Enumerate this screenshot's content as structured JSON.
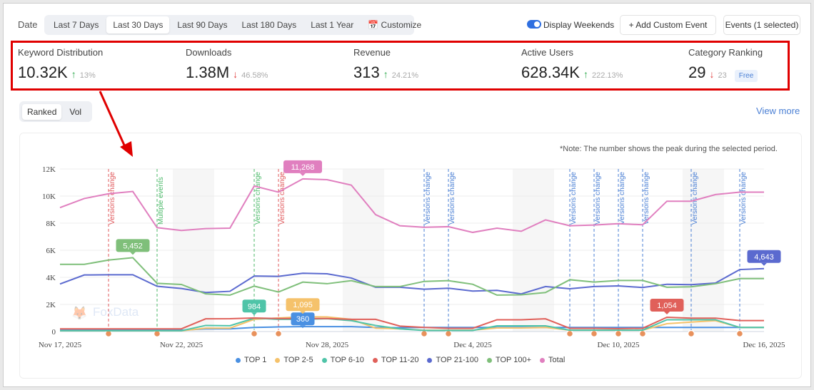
{
  "toolbar": {
    "date_label": "Date",
    "ranges": [
      "Last 7 Days",
      "Last 30 Days",
      "Last 90 Days",
      "Last 180 Days",
      "Last 1 Year",
      "Customize"
    ],
    "active_range": "Last 30 Days",
    "display_weekends": "Display Weekends",
    "display_weekends_on": true,
    "add_event": "+ Add Custom Event",
    "events": "Events (1 selected)"
  },
  "metrics": [
    {
      "label": "Keyword Distribution",
      "value": "10.32K",
      "trend": "up",
      "change": "13%"
    },
    {
      "label": "Downloads",
      "value": "1.38M",
      "trend": "down",
      "change": "46.58%"
    },
    {
      "label": "Revenue",
      "value": "313",
      "trend": "up",
      "change": "24.21%"
    },
    {
      "label": "Active Users",
      "value": "628.34K",
      "trend": "up",
      "change": "222.13%"
    },
    {
      "label": "Category Ranking",
      "value": "29",
      "trend": "down",
      "change": "23",
      "badge": "Free"
    }
  ],
  "tabs": {
    "ranked": "Ranked",
    "vol": "Vol",
    "active": "Ranked",
    "view_more": "View more"
  },
  "note": "*Note: The number shows the peak during the selected period.",
  "watermark": "FoxData",
  "chart_data": {
    "type": "line",
    "ylim": [
      0,
      12000
    ],
    "yticks": [
      "0",
      "2K",
      "4K",
      "6K",
      "8K",
      "10K",
      "12K"
    ],
    "xticks": [
      "Nov 17, 2025",
      "Nov 22, 2025",
      "Nov 28, 2025",
      "Dec 4, 2025",
      "Dec 10, 2025",
      "Dec 16, 2025"
    ],
    "x": [
      "Nov 17",
      "Nov 18",
      "Nov 19",
      "Nov 20",
      "Nov 21",
      "Nov 22",
      "Nov 23",
      "Nov 24",
      "Nov 25",
      "Nov 26",
      "Nov 27",
      "Nov 28",
      "Nov 29",
      "Nov 30",
      "Dec 1",
      "Dec 2",
      "Dec 3",
      "Dec 4",
      "Dec 5",
      "Dec 6",
      "Dec 7",
      "Dec 8",
      "Dec 9",
      "Dec 10",
      "Dec 11",
      "Dec 12",
      "Dec 13",
      "Dec 14",
      "Dec 15",
      "Dec 16"
    ],
    "weekends": [
      [
        "Nov 22",
        "Nov 23"
      ],
      [
        "Nov 29",
        "Nov 30"
      ],
      [
        "Dec 6",
        "Dec 7"
      ],
      [
        "Dec 13",
        "Dec 14"
      ]
    ],
    "series": [
      {
        "name": "TOP 1",
        "color": "#4a90e2",
        "peak": "360",
        "peak_index": 10,
        "values": [
          100,
          100,
          100,
          100,
          100,
          100,
          200,
          200,
          300,
          340,
          360,
          360,
          360,
          300,
          280,
          300,
          300,
          300,
          300,
          300,
          300,
          300,
          300,
          300,
          300,
          300,
          300,
          300,
          300,
          300
        ]
      },
      {
        "name": "TOP 2-5",
        "color": "#f5c26b",
        "peak": "1,095",
        "peak_index": 10,
        "values": [
          50,
          50,
          50,
          50,
          50,
          50,
          250,
          250,
          900,
          1000,
          1095,
          1080,
          900,
          250,
          200,
          100,
          100,
          100,
          260,
          260,
          300,
          100,
          100,
          100,
          100,
          580,
          700,
          800,
          300,
          300
        ]
      },
      {
        "name": "TOP 6-10",
        "color": "#4fc4a8",
        "peak": "984",
        "peak_index": 8,
        "values": [
          60,
          60,
          60,
          60,
          60,
          60,
          450,
          430,
          984,
          900,
          900,
          950,
          800,
          450,
          200,
          80,
          80,
          80,
          420,
          420,
          420,
          100,
          100,
          100,
          100,
          870,
          870,
          870,
          300,
          300
        ]
      },
      {
        "name": "TOP 11-20",
        "color": "#e0605a",
        "peak": "1,054",
        "peak_index": 25,
        "values": [
          200,
          200,
          200,
          200,
          200,
          200,
          940,
          950,
          1000,
          960,
          960,
          960,
          900,
          900,
          400,
          300,
          240,
          240,
          870,
          870,
          940,
          240,
          240,
          220,
          240,
          1054,
          990,
          990,
          810,
          810
        ]
      },
      {
        "name": "TOP 21-100",
        "color": "#5b6acf",
        "peak": "4,643",
        "peak_index": 29,
        "values": [
          3510,
          4175,
          4190,
          4190,
          3340,
          3180,
          2880,
          2970,
          4100,
          4070,
          4300,
          4260,
          3950,
          3270,
          3270,
          3125,
          3200,
          2990,
          3040,
          2780,
          3320,
          3160,
          3320,
          3370,
          3250,
          3490,
          3460,
          3580,
          4576,
          4643
        ]
      },
      {
        "name": "TOP 100+",
        "color": "#7fbf7a",
        "peak": "5,452",
        "peak_index": 3,
        "values": [
          4960,
          4960,
          5275,
          5452,
          3560,
          3475,
          2780,
          2690,
          3350,
          2920,
          3650,
          3530,
          3755,
          3320,
          3320,
          3700,
          3755,
          3490,
          2690,
          2710,
          2880,
          3825,
          3650,
          3770,
          3770,
          3270,
          3300,
          3530,
          3910,
          3910
        ]
      },
      {
        "name": "Total",
        "color": "#e07fbf",
        "peak": "11,268",
        "peak_index": 10,
        "values": [
          9150,
          9820,
          10170,
          10340,
          7670,
          7460,
          7600,
          7630,
          10740,
          10290,
          11268,
          11210,
          10810,
          8630,
          7810,
          7700,
          7740,
          7320,
          7630,
          7400,
          8240,
          7810,
          7860,
          7960,
          7880,
          9620,
          9620,
          10110,
          10290,
          10290
        ]
      }
    ],
    "events": [
      {
        "index": 2,
        "label": "Versions change",
        "color": "#e0585b"
      },
      {
        "index": 4,
        "label": "Multiple events",
        "color": "#4cba6a"
      },
      {
        "index": 8,
        "label": "Versions change",
        "color": "#4cba6a"
      },
      {
        "index": 9,
        "label": "Versions change",
        "color": "#e0585b"
      },
      {
        "index": 15,
        "label": "Versions change",
        "color": "#4a7fd4"
      },
      {
        "index": 16,
        "label": "Versions change",
        "color": "#4a7fd4"
      },
      {
        "index": 21,
        "label": "Versions change",
        "color": "#4a7fd4"
      },
      {
        "index": 22,
        "label": "Versions change",
        "color": "#4a7fd4"
      },
      {
        "index": 23,
        "label": "Versions change",
        "color": "#4a7fd4"
      },
      {
        "index": 24,
        "label": "Versions change",
        "color": "#4a7fd4"
      },
      {
        "index": 26,
        "label": "Versions change",
        "color": "#4a7fd4"
      },
      {
        "index": 28,
        "label": "Versions change",
        "color": "#4a7fd4"
      }
    ]
  }
}
